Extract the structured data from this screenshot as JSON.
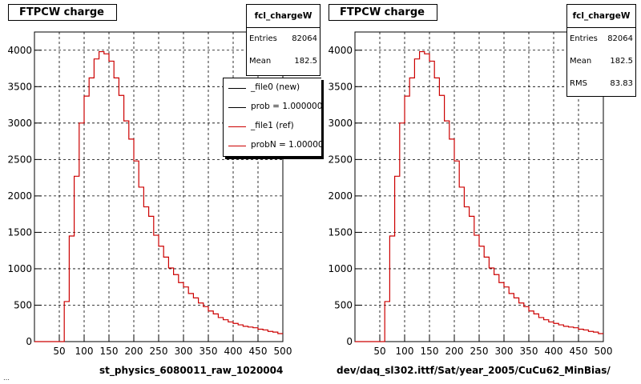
{
  "colors": {
    "ref": "#cc0000",
    "new": "#000000",
    "grid": "#000000"
  },
  "panels": [
    {
      "id": "left",
      "title": "FTPCW charge",
      "stats": {
        "name": "fcl_chargeW",
        "rows": [
          {
            "key": "Entries",
            "value": "82064"
          },
          {
            "key": "Mean",
            "value": "182.5"
          }
        ]
      },
      "legend": [
        {
          "label": "_file0 (new)",
          "color": "#000000"
        },
        {
          "label": "prob = 1.000000",
          "color": "#000000"
        },
        {
          "label": "_file1 (ref)",
          "color": "#cc0000"
        },
        {
          "label": "probN = 1.000000",
          "color": "#cc0000"
        }
      ],
      "xlabel": "st_physics_6080011_raw_1020004"
    },
    {
      "id": "right",
      "title": "FTPCW charge",
      "stats": {
        "name": "fcl_chargeW",
        "rows": [
          {
            "key": "Entries",
            "value": "82064"
          },
          {
            "key": "Mean",
            "value": "182.5"
          },
          {
            "key": "RMS",
            "value": "83.83"
          }
        ]
      },
      "legend": [],
      "xlabel": "dev/daq_sl302.ittf/Sat/year_2005/CuCu62_MinBias/"
    }
  ],
  "chart_data": {
    "type": "bar",
    "xlim": [
      0,
      500
    ],
    "ylim": [
      0,
      4250
    ],
    "bin_width": 10,
    "xticks": [
      50,
      100,
      150,
      200,
      250,
      300,
      350,
      400,
      450,
      500
    ],
    "yticks": [
      0,
      500,
      1000,
      1500,
      2000,
      2500,
      3000,
      3500,
      4000
    ],
    "grid": true,
    "series": [
      {
        "values": [
          0,
          0,
          0,
          0,
          0,
          0,
          550,
          1450,
          2270,
          3000,
          3370,
          3620,
          3880,
          3980,
          3950,
          3850,
          3620,
          3380,
          3030,
          2780,
          2480,
          2120,
          1850,
          1720,
          1460,
          1310,
          1160,
          1010,
          920,
          810,
          750,
          660,
          600,
          530,
          480,
          420,
          380,
          330,
          300,
          270,
          250,
          230,
          210,
          200,
          190,
          170,
          160,
          140,
          130,
          110
        ]
      }
    ]
  },
  "footer": "…"
}
